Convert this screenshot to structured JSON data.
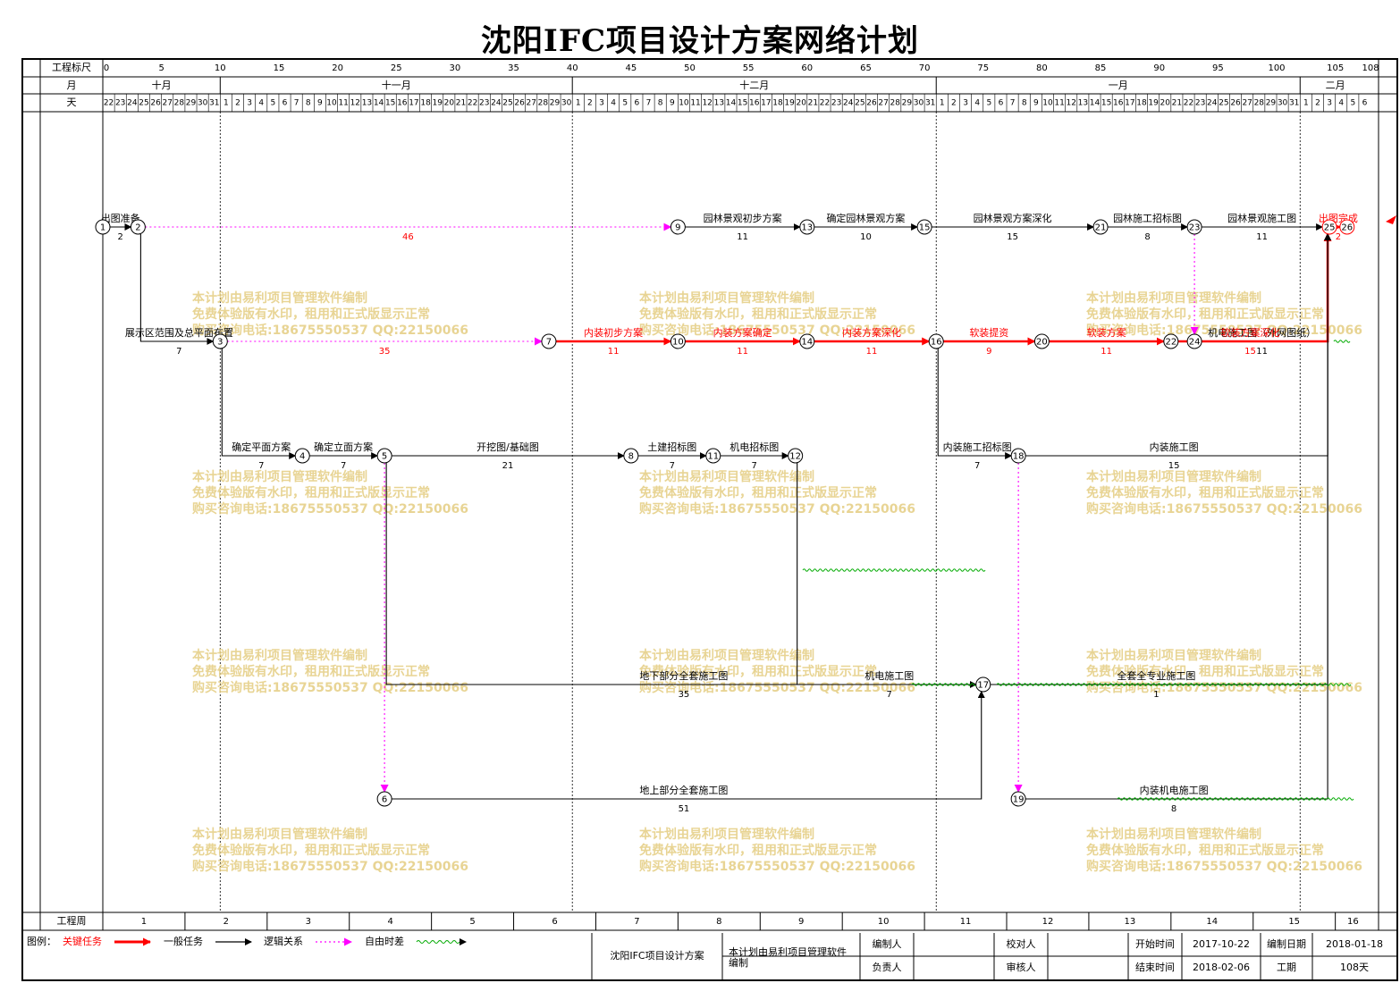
{
  "title": "沈阳IFC项目设计方案网络计划",
  "header": {
    "scale_label": "工程标尺",
    "month_label": "月",
    "day_label": "天",
    "week_label": "工程周",
    "scale_ticks": [
      "0",
      "5",
      "10",
      "15",
      "20",
      "25",
      "30",
      "35",
      "40",
      "45",
      "50",
      "55",
      "60",
      "65",
      "70",
      "75",
      "80",
      "85",
      "90",
      "95",
      "100",
      "105",
      "108"
    ],
    "months": [
      "十月",
      "十一月",
      "十二月",
      "一月",
      "二月"
    ],
    "weeks": [
      "1",
      "2",
      "3",
      "4",
      "5",
      "6",
      "7",
      "8",
      "9",
      "10",
      "11",
      "12",
      "13",
      "14",
      "15",
      "16"
    ]
  },
  "colors": {
    "critical": "#ff0000",
    "normal": "#000000",
    "logic": "#ff00ff",
    "float": "#00aa00",
    "watermark": "#e5cf86"
  },
  "nodes": [
    {
      "id": "1",
      "day": 0,
      "row": "r1"
    },
    {
      "id": "2",
      "day": 3,
      "row": "r1"
    },
    {
      "id": "9",
      "day": 49,
      "row": "r1"
    },
    {
      "id": "13",
      "day": 60,
      "row": "r1"
    },
    {
      "id": "15",
      "day": 70,
      "row": "r1"
    },
    {
      "id": "21",
      "day": 85,
      "row": "r1"
    },
    {
      "id": "23",
      "day": 93,
      "row": "r1"
    },
    {
      "id": "25",
      "day": 104.5,
      "row": "r1"
    },
    {
      "id": "26",
      "day": 106,
      "row": "r1"
    },
    {
      "id": "3",
      "day": 10,
      "row": "r2"
    },
    {
      "id": "7",
      "day": 38,
      "row": "r2"
    },
    {
      "id": "10",
      "day": 49,
      "row": "r2"
    },
    {
      "id": "14",
      "day": 60,
      "row": "r2"
    },
    {
      "id": "16",
      "day": 71,
      "row": "r2"
    },
    {
      "id": "20",
      "day": 80,
      "row": "r2"
    },
    {
      "id": "22",
      "day": 91,
      "row": "r2"
    },
    {
      "id": "24",
      "day": 93,
      "row": "r2"
    },
    {
      "id": "4",
      "day": 17,
      "row": "r3"
    },
    {
      "id": "5",
      "day": 24,
      "row": "r3"
    },
    {
      "id": "8",
      "day": 45,
      "row": "r3"
    },
    {
      "id": "11",
      "day": 52,
      "row": "r3"
    },
    {
      "id": "12",
      "day": 59,
      "row": "r3"
    },
    {
      "id": "18",
      "day": 78,
      "row": "r3"
    },
    {
      "id": "17",
      "day": 75,
      "row": "r5"
    },
    {
      "id": "6",
      "day": 24,
      "row": "r6"
    },
    {
      "id": "19",
      "day": 78,
      "row": "r6"
    }
  ],
  "tasks": [
    {
      "kind": "normal",
      "from": "1",
      "to": "2",
      "label": "出图准备",
      "dur": "2"
    },
    {
      "kind": "logic",
      "from": "2",
      "to": "9",
      "label": "",
      "dur": "46"
    },
    {
      "kind": "normal",
      "from": "9",
      "to": "13",
      "label": "园林景观初步方案",
      "dur": "11"
    },
    {
      "kind": "normal",
      "from": "13",
      "to": "15",
      "label": "确定园林景观方案",
      "dur": "10"
    },
    {
      "kind": "normal",
      "from": "15",
      "to": "21",
      "label": "园林景观方案深化",
      "dur": "15"
    },
    {
      "kind": "normal",
      "from": "21",
      "to": "23",
      "label": "园林施工招标图",
      "dur": "8"
    },
    {
      "kind": "normal",
      "from": "23",
      "to": "25",
      "label": "园林景观施工图",
      "dur": "11"
    },
    {
      "kind": "critical",
      "from": "25",
      "to": "26",
      "label": "出图完成",
      "dur": "2"
    },
    {
      "kind": "normal",
      "from": "2",
      "to": "3",
      "label": "展示区范围及总平面布置",
      "dur": "7"
    },
    {
      "kind": "logic",
      "from": "3",
      "to": "7",
      "label": "",
      "dur": "35"
    },
    {
      "kind": "critical",
      "from": "7",
      "to": "10",
      "label": "内装初步方案",
      "dur": "11"
    },
    {
      "kind": "critical",
      "from": "10",
      "to": "14",
      "label": "内装方案确定",
      "dur": "11"
    },
    {
      "kind": "critical",
      "from": "14",
      "to": "16",
      "label": "内装方案深化",
      "dur": "11"
    },
    {
      "kind": "critical",
      "from": "16",
      "to": "20",
      "label": "软装提资",
      "dur": "9"
    },
    {
      "kind": "critical",
      "from": "20",
      "to": "22",
      "label": "软装方案",
      "dur": "11"
    },
    {
      "kind": "normal",
      "from": "24",
      "to": "25",
      "label": "机电施工图（外网图纸）",
      "dur": "11"
    },
    {
      "kind": "critical",
      "from": "22",
      "to": "25",
      "label": "软装方案深化",
      "dur": "15"
    },
    {
      "kind": "normal",
      "from": "3",
      "to": "4",
      "label": "确定平面方案",
      "dur": "7"
    },
    {
      "kind": "normal",
      "from": "4",
      "to": "5",
      "label": "确定立面方案",
      "dur": "7"
    },
    {
      "kind": "normal",
      "from": "5",
      "to": "8",
      "label": "开挖图/基础图",
      "dur": "21"
    },
    {
      "kind": "normal",
      "from": "8",
      "to": "11",
      "label": "土建招标图",
      "dur": "7"
    },
    {
      "kind": "normal",
      "from": "11",
      "to": "12",
      "label": "机电招标图",
      "dur": "7"
    },
    {
      "kind": "normal",
      "from": "16",
      "to": "18",
      "label": "内装施工招标图",
      "dur": "7"
    },
    {
      "kind": "normal",
      "from": "5",
      "to": "17",
      "label": "地下部分全套施工图",
      "dur": "35"
    },
    {
      "kind": "normal",
      "from": "18",
      "to": "25",
      "label": "内装施工图",
      "dur": "15"
    },
    {
      "kind": "normal",
      "from": "12",
      "to": "17",
      "label": "机电施工图",
      "dur": "7"
    },
    {
      "kind": "normal",
      "from": "17",
      "to": "25",
      "label": "全套全专业施工图",
      "dur": "1"
    },
    {
      "kind": "normal",
      "from": "6",
      "to": "17",
      "label": "地上部分全套施工图",
      "dur": "51"
    },
    {
      "kind": "normal",
      "from": "19",
      "to": "25",
      "label": "内装机电施工图",
      "dur": "8"
    },
    {
      "kind": "logic",
      "from": "5",
      "to": "6",
      "label": "",
      "dur": ""
    },
    {
      "kind": "logic",
      "from": "18",
      "to": "19",
      "label": "",
      "dur": ""
    },
    {
      "kind": "logic",
      "from": "23",
      "to": "24",
      "label": "",
      "dur": ""
    }
  ],
  "watermark": {
    "lines": [
      "本计划由易利项目管理软件编制",
      "免费体验版有水印，租用和正式版显示正常",
      "购买咨询电话:18675550537 QQ:22150066"
    ]
  },
  "footer": {
    "legend_title": "图例：",
    "legend": [
      {
        "kind": "critical",
        "label": "关键任务"
      },
      {
        "kind": "normal",
        "label": "一般任务"
      },
      {
        "kind": "logic",
        "label": "逻辑关系"
      },
      {
        "kind": "float",
        "label": "自由时差"
      }
    ],
    "project_name": "沈阳IFC项目设计方案",
    "software_note": "本计划由易利项目管理软件编制",
    "compiler_label": "编制人",
    "checker_label": "校对人",
    "start_label": "开始时间",
    "start_value": "2017-10-22",
    "compile_date_label": "编制日期",
    "compile_date_value": "2018-01-18",
    "owner_label": "负责人",
    "reviewer_label": "审核人",
    "end_label": "结束时间",
    "end_value": "2018-02-06",
    "duration_label": "工期",
    "duration_value": "108天"
  }
}
